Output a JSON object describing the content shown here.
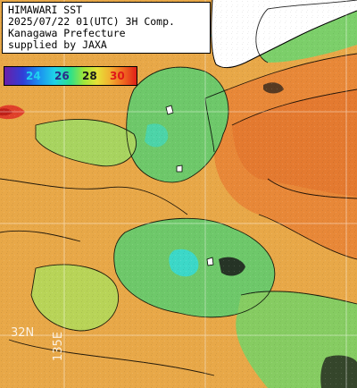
{
  "header": {
    "lines": [
      "HIMAWARI SST",
      "2025/07/22 01(UTC) 3H Comp.",
      "Kanagawa Prefecture",
      "supplied by JAXA"
    ]
  },
  "legend": {
    "ticks": [
      {
        "label": "24",
        "color": "#1fd2f0"
      },
      {
        "label": "26",
        "color": "#2a2a8a"
      },
      {
        "label": "28",
        "color": "#1a1a1a"
      },
      {
        "label": "30",
        "color": "#e01818"
      }
    ],
    "gradient": [
      "#6a1fa8",
      "#2f3fd8",
      "#1b8ef0",
      "#1fd2e8",
      "#2ee08a",
      "#9ee63a",
      "#e6e238",
      "#f2b030",
      "#f06a20",
      "#e02018"
    ]
  },
  "grid": {
    "lat_label": "32N",
    "lon_label": "135E"
  },
  "colors": {
    "land": "#ffffff",
    "warm": "#e8a848",
    "hot": "#e88838",
    "cool": "#6ec86a",
    "cold": "#3cd8c8",
    "coldest": "#20b8e8",
    "contour": "#000000"
  }
}
